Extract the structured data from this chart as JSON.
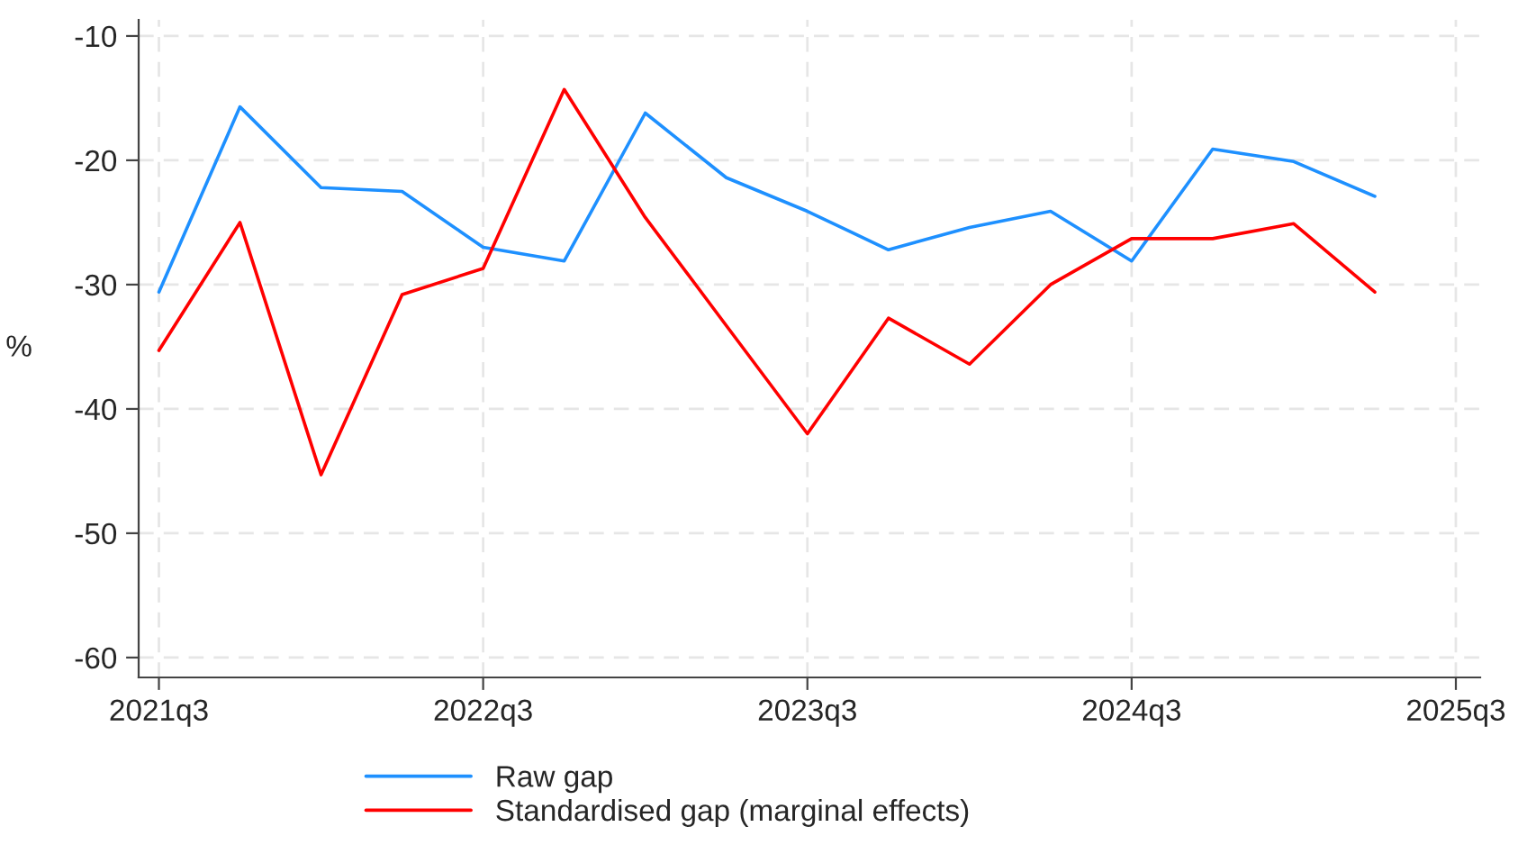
{
  "chart_data": {
    "type": "line",
    "ylabel": "%",
    "categories": [
      "2021q3",
      null,
      null,
      null,
      "2022q3",
      null,
      null,
      null,
      "2023q3",
      null,
      null,
      null,
      "2024q3",
      null,
      null,
      null,
      "2025q3"
    ],
    "series": [
      {
        "name": "Raw gap",
        "color": "#1e90ff",
        "values": [
          -30.6,
          -15.7,
          -22.2,
          -22.5,
          -27.0,
          -28.1,
          -16.2,
          -21.4,
          -24.1,
          -27.2,
          -25.4,
          -24.1,
          -28.1,
          -19.1,
          -20.1,
          -22.9,
          null
        ]
      },
      {
        "name": "Standardised gap (marginal effects)",
        "color": "#ff0000",
        "values": [
          -35.3,
          -25.0,
          -45.3,
          -30.8,
          -28.7,
          -14.3,
          -24.6,
          -33.3,
          -42.0,
          -32.7,
          -36.4,
          -30.0,
          -26.3,
          -26.3,
          -25.1,
          -30.6,
          null
        ]
      }
    ],
    "ylim": [
      -61.6,
      -8.7
    ],
    "yticks": [
      -60,
      -50,
      -40,
      -30,
      -20,
      -10
    ],
    "grid": true,
    "legend": "bottom",
    "line_style": "solid",
    "marker": "none"
  }
}
